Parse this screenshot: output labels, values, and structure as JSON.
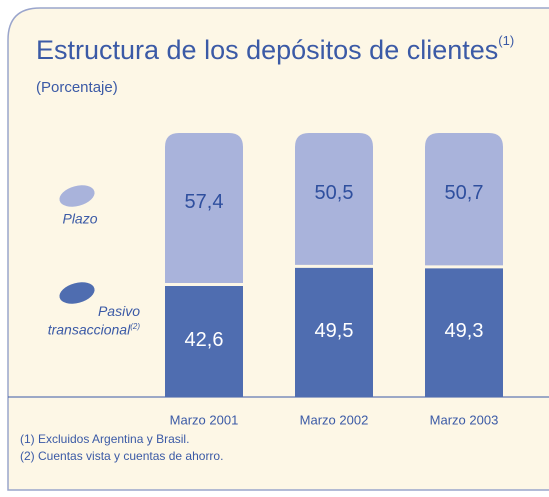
{
  "chart_data": {
    "type": "stacked_bar",
    "title": "Estructura de los depósitos de clientes",
    "title_note": "(1)",
    "subtitle": "(Porcentaje)",
    "categories": [
      "Marzo 2001",
      "Marzo 2002",
      "Marzo 2003"
    ],
    "series": [
      {
        "name": "Pasivo transaccional",
        "note": "(2)",
        "color": "#4f6db0",
        "values": [
          42.6,
          49.5,
          49.3
        ],
        "value_labels": [
          "42,6",
          "49,5",
          "49,3"
        ]
      },
      {
        "name": "Plazo",
        "color": "#a9b3db",
        "values": [
          57.4,
          50.5,
          50.7
        ],
        "value_labels": [
          "57,4",
          "50,5",
          "50,7"
        ]
      }
    ],
    "ylim": [
      0,
      100
    ],
    "notes": [
      "(1)  Excluidos Argentina y Brasil.",
      "(2)  Cuentas vista y cuentas de ahorro."
    ]
  }
}
